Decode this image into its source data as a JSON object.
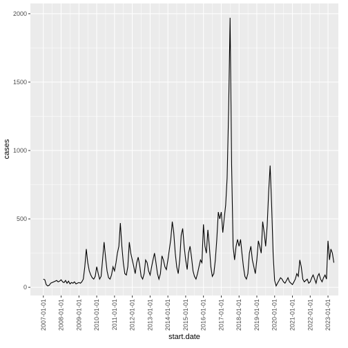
{
  "chart_data": {
    "type": "line",
    "x_label": "start.date",
    "y_label": "cases",
    "color": "#000000",
    "grid": true,
    "xlim": [
      "2006-04-10",
      "2023-08-01"
    ],
    "ylim": [
      -60,
      2075
    ],
    "xticks": [
      "2007-01-01",
      "2008-01-01",
      "2009-01-01",
      "2010-01-01",
      "2011-01-01",
      "2012-01-01",
      "2013-01-01",
      "2014-01-01",
      "2015-01-01",
      "2016-01-01",
      "2017-01-01",
      "2018-01-01",
      "2019-01-01",
      "2020-01-01",
      "2021-01-01",
      "2022-01-01",
      "2023-01-01"
    ],
    "yticks": [
      0,
      500,
      1000,
      1500,
      2000
    ],
    "x": [
      "2007-01-01",
      "2007-02-01",
      "2007-03-01",
      "2007-04-01",
      "2007-05-01",
      "2007-06-01",
      "2007-07-01",
      "2007-08-01",
      "2007-09-01",
      "2007-10-01",
      "2007-11-01",
      "2007-12-01",
      "2008-01-01",
      "2008-02-01",
      "2008-03-01",
      "2008-04-01",
      "2008-05-01",
      "2008-06-01",
      "2008-07-01",
      "2008-08-01",
      "2008-09-01",
      "2008-10-01",
      "2008-11-01",
      "2008-12-01",
      "2009-01-01",
      "2009-02-01",
      "2009-03-01",
      "2009-04-01",
      "2009-05-01",
      "2009-06-01",
      "2009-07-01",
      "2009-08-01",
      "2009-09-01",
      "2009-10-01",
      "2009-11-01",
      "2009-12-01",
      "2010-01-01",
      "2010-02-01",
      "2010-03-01",
      "2010-04-01",
      "2010-05-01",
      "2010-06-01",
      "2010-07-01",
      "2010-08-01",
      "2010-09-01",
      "2010-10-01",
      "2010-11-01",
      "2010-12-01",
      "2011-01-01",
      "2011-02-01",
      "2011-03-01",
      "2011-04-01",
      "2011-05-01",
      "2011-06-01",
      "2011-07-01",
      "2011-08-01",
      "2011-09-01",
      "2011-10-01",
      "2011-11-01",
      "2011-12-01",
      "2012-01-01",
      "2012-02-01",
      "2012-03-01",
      "2012-04-01",
      "2012-05-01",
      "2012-06-01",
      "2012-07-01",
      "2012-08-01",
      "2012-09-01",
      "2012-10-01",
      "2012-11-01",
      "2012-12-01",
      "2013-01-01",
      "2013-02-01",
      "2013-03-01",
      "2013-04-01",
      "2013-05-01",
      "2013-06-01",
      "2013-07-01",
      "2013-08-01",
      "2013-09-01",
      "2013-10-01",
      "2013-11-01",
      "2013-12-01",
      "2014-01-01",
      "2014-02-01",
      "2014-03-01",
      "2014-04-01",
      "2014-05-01",
      "2014-06-01",
      "2014-07-01",
      "2014-08-01",
      "2014-09-01",
      "2014-10-01",
      "2014-11-01",
      "2014-12-01",
      "2015-01-01",
      "2015-02-01",
      "2015-03-01",
      "2015-04-01",
      "2015-05-01",
      "2015-06-01",
      "2015-07-01",
      "2015-08-01",
      "2015-09-01",
      "2015-10-01",
      "2015-11-01",
      "2015-12-01",
      "2016-01-01",
      "2016-02-01",
      "2016-03-01",
      "2016-04-01",
      "2016-05-01",
      "2016-06-01",
      "2016-07-01",
      "2016-08-01",
      "2016-09-01",
      "2016-10-01",
      "2016-11-01",
      "2016-12-01",
      "2017-01-01",
      "2017-02-01",
      "2017-03-01",
      "2017-04-01",
      "2017-05-01",
      "2017-06-01",
      "2017-07-01",
      "2017-08-01",
      "2017-09-01",
      "2017-10-01",
      "2017-11-01",
      "2017-12-01",
      "2018-01-01",
      "2018-02-01",
      "2018-03-01",
      "2018-04-01",
      "2018-05-01",
      "2018-06-01",
      "2018-07-01",
      "2018-08-01",
      "2018-09-01",
      "2018-10-01",
      "2018-11-01",
      "2018-12-01",
      "2019-01-01",
      "2019-02-01",
      "2019-03-01",
      "2019-04-01",
      "2019-05-01",
      "2019-06-01",
      "2019-07-01",
      "2019-08-01",
      "2019-09-01",
      "2019-10-01",
      "2019-11-01",
      "2019-12-01",
      "2020-01-01",
      "2020-02-01",
      "2020-03-01",
      "2020-04-01",
      "2020-05-01",
      "2020-06-01",
      "2020-07-01",
      "2020-08-01",
      "2020-09-01",
      "2020-10-01",
      "2020-11-01",
      "2020-12-01",
      "2021-01-01",
      "2021-02-01",
      "2021-03-01",
      "2021-04-01",
      "2021-05-01",
      "2021-06-01",
      "2021-07-01",
      "2021-08-01",
      "2021-09-01",
      "2021-10-01",
      "2021-11-01",
      "2021-12-01",
      "2022-01-01",
      "2022-02-01",
      "2022-03-01",
      "2022-04-01",
      "2022-05-01",
      "2022-06-01",
      "2022-07-01",
      "2022-08-01",
      "2022-09-01",
      "2022-10-01",
      "2022-11-01",
      "2022-12-01",
      "2023-01-01",
      "2023-02-01",
      "2023-03-01",
      "2023-04-01",
      "2023-05-01"
    ],
    "values": [
      60,
      55,
      20,
      10,
      15,
      30,
      35,
      40,
      45,
      50,
      40,
      45,
      55,
      40,
      35,
      50,
      30,
      45,
      25,
      35,
      30,
      40,
      25,
      30,
      35,
      30,
      40,
      60,
      150,
      280,
      180,
      120,
      90,
      70,
      60,
      80,
      150,
      100,
      60,
      80,
      200,
      330,
      220,
      120,
      70,
      60,
      90,
      150,
      120,
      180,
      250,
      300,
      470,
      300,
      180,
      100,
      90,
      150,
      330,
      250,
      200,
      150,
      100,
      180,
      220,
      160,
      80,
      60,
      100,
      200,
      180,
      120,
      90,
      150,
      200,
      250,
      180,
      100,
      60,
      100,
      230,
      200,
      150,
      130,
      200,
      280,
      350,
      480,
      400,
      250,
      150,
      100,
      200,
      380,
      430,
      300,
      200,
      130,
      250,
      300,
      220,
      120,
      80,
      60,
      100,
      150,
      200,
      180,
      460,
      300,
      250,
      420,
      300,
      150,
      80,
      100,
      200,
      350,
      550,
      500,
      550,
      400,
      500,
      600,
      800,
      1300,
      1970,
      900,
      300,
      200,
      300,
      350,
      300,
      350,
      250,
      150,
      80,
      60,
      100,
      250,
      300,
      200,
      150,
      100,
      200,
      340,
      300,
      250,
      480,
      400,
      300,
      450,
      700,
      890,
      600,
      250,
      50,
      10,
      30,
      50,
      70,
      60,
      40,
      30,
      50,
      70,
      40,
      30,
      20,
      40,
      60,
      100,
      80,
      200,
      150,
      60,
      40,
      50,
      60,
      30,
      40,
      70,
      90,
      60,
      30,
      80,
      100,
      60,
      40,
      70,
      90,
      60,
      340,
      200,
      280,
      250,
      180
    ]
  }
}
